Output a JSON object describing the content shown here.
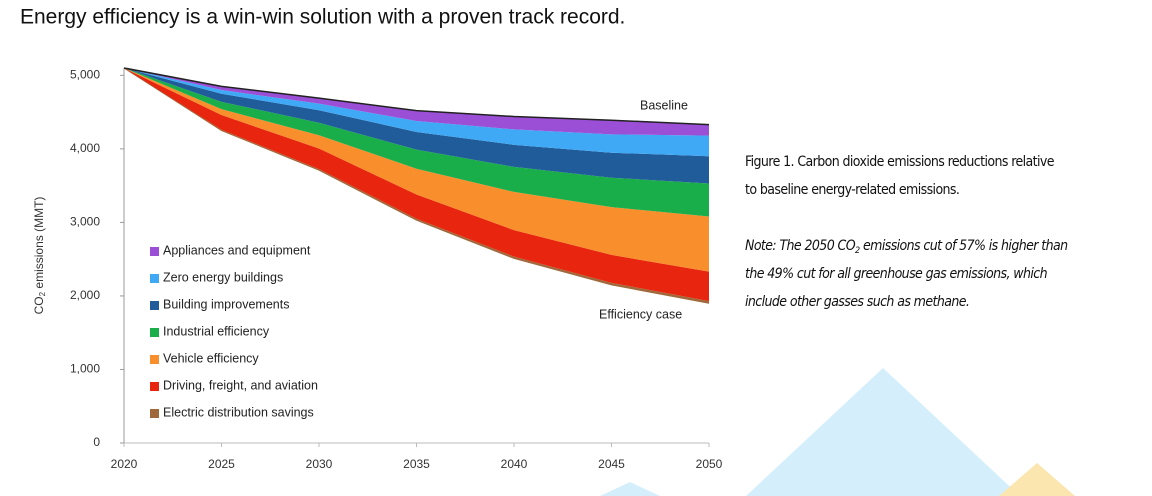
{
  "header": {
    "text": "Energy efficiency is a win-win solution with a proven track record."
  },
  "chart_data": {
    "type": "stacked-area",
    "y_label": [
      "CO",
      "2",
      " emissions (MMT)"
    ],
    "x": [
      2020,
      2025,
      2030,
      2035,
      2040,
      2045,
      2050
    ],
    "xlim": [
      2020,
      2050
    ],
    "xticks": [
      2020,
      2025,
      2030,
      2035,
      2040,
      2045,
      2050
    ],
    "ylim": [
      0,
      5100
    ],
    "yticks": [
      0,
      {
        "value": 1000,
        "label": "1,000"
      },
      {
        "value": 2000,
        "label": "2,000"
      },
      {
        "value": 3000,
        "label": "3,000"
      },
      {
        "value": 4000,
        "label": "4,000"
      },
      {
        "value": 5000,
        "label": "5,000"
      }
    ],
    "efficiency_case": {
      "label": "Efficiency case",
      "values": [
        5100,
        4250,
        3710,
        3030,
        2510,
        2150,
        1900
      ]
    },
    "baseline_label": "Baseline",
    "series": [
      {
        "name": "Appliances and equipment",
        "color": "#9b4fd6",
        "values": [
          0,
          50,
          75,
          140,
          175,
          192,
          150
        ]
      },
      {
        "name": "Zero energy buildings",
        "color": "#3fa9f5",
        "values": [
          0,
          50,
          90,
          150,
          210,
          250,
          280
        ]
      },
      {
        "name": "Building improvements",
        "color": "#1f5c99",
        "values": [
          0,
          110,
          170,
          240,
          300,
          340,
          370
        ]
      },
      {
        "name": "Industrial efficiency",
        "color": "#1aae4a",
        "values": [
          0,
          100,
          170,
          260,
          340,
          400,
          450
        ]
      },
      {
        "name": "Vehicle efficiency",
        "color": "#f98e2c",
        "values": [
          0,
          80,
          180,
          350,
          520,
          650,
          750
        ]
      },
      {
        "name": "Driving, freight, and aviation",
        "color": "#e8260f",
        "values": [
          0,
          200,
          280,
          330,
          360,
          380,
          400
        ]
      },
      {
        "name": "Electric distribution savings",
        "color": "#a0693b",
        "values": [
          0,
          10,
          15,
          20,
          25,
          28,
          30
        ]
      }
    ]
  },
  "caption": [
    "Figure 1. Carbon dioxide emissions reductions relative",
    "to baseline energy-related emissions."
  ],
  "note": [
    [
      "Note: The 2050 CO",
      "2",
      " emissions cut of 57% is higher than"
    ],
    [
      "the 49% cut for all greenhouse gas emissions, which"
    ],
    [
      "include other gasses such as methane."
    ]
  ]
}
